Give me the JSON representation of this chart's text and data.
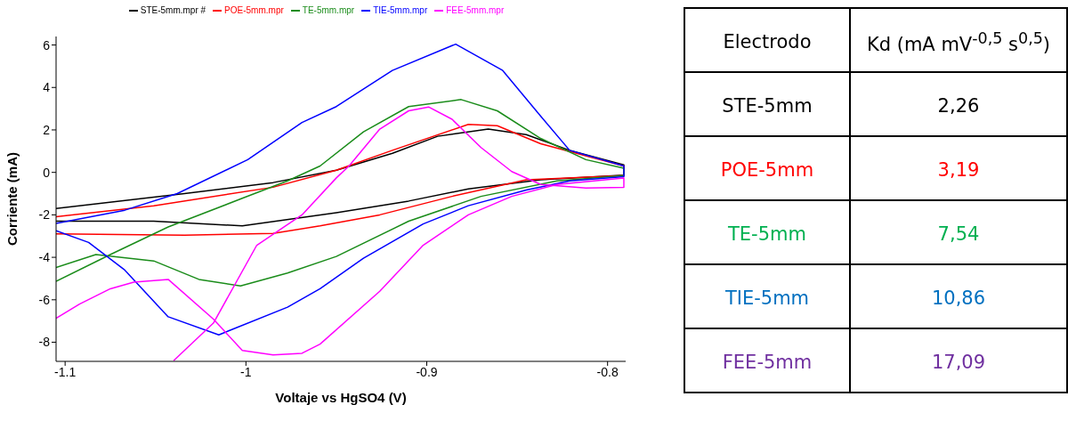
{
  "chart_data": [
    {
      "type": "line",
      "xlabel": "Voltaje vs HgSO4 (V)",
      "ylabel": "Corriente (mA)",
      "xlim": [
        -1.105,
        -0.79
      ],
      "ylim": [
        -8.9,
        6.4
      ],
      "xticks": [
        -1.1,
        -1,
        -0.9,
        -0.8
      ],
      "yticks": [
        -8,
        -6,
        -4,
        -2,
        0,
        2,
        4,
        6
      ],
      "legend": "top",
      "grid": false,
      "marker": "none",
      "line_style": "solid",
      "series": [
        {
          "name": "STE-5mm.mpr #",
          "color": "#000000",
          "x": [
            -1.105,
            -1.034,
            -0.985,
            -0.95,
            -0.919,
            -0.894,
            -0.866,
            -0.845,
            -0.821,
            -0.791,
            -0.791,
            -0.837,
            -0.877,
            -0.91,
            -0.95,
            -1.002,
            -1.051,
            -1.105
          ],
          "values": [
            -1.7,
            -1.0,
            -0.48,
            0.1,
            0.9,
            1.7,
            2.04,
            1.78,
            1.04,
            0.35,
            -0.13,
            -0.35,
            -0.78,
            -1.35,
            -1.9,
            -2.52,
            -2.3,
            -2.3
          ]
        },
        {
          "name": "POE-5mm.mpr",
          "color": "#ff0000",
          "x": [
            -1.105,
            -1.051,
            -0.985,
            -0.95,
            -0.919,
            -0.877,
            -0.861,
            -0.837,
            -0.791,
            -0.791,
            -0.845,
            -0.886,
            -0.926,
            -0.959,
            -0.985,
            -1.034,
            -1.105
          ],
          "values": [
            -2.09,
            -1.57,
            -0.7,
            0.1,
            1.04,
            2.26,
            2.2,
            1.35,
            0.3,
            -0.15,
            -0.35,
            -1.13,
            -2.0,
            -2.52,
            -2.87,
            -2.96,
            -2.9
          ]
        },
        {
          "name": "TE-5mm.mpr",
          "color": "#1a8c1a",
          "x": [
            -1.105,
            -1.075,
            -1.043,
            -1.002,
            -0.977,
            -0.959,
            -0.935,
            -0.91,
            -0.881,
            -0.861,
            -0.837,
            -0.812,
            -0.791,
            -0.791,
            -0.828,
            -0.87,
            -0.91,
            -0.95,
            -0.977,
            -1.003,
            -1.026,
            -1.051,
            -1.083,
            -1.105
          ],
          "values": [
            -5.13,
            -3.87,
            -2.57,
            -1.22,
            -0.4,
            0.3,
            1.91,
            3.1,
            3.43,
            2.9,
            1.6,
            0.6,
            0.2,
            -0.15,
            -0.4,
            -1.13,
            -2.3,
            -3.96,
            -4.74,
            -5.35,
            -5.04,
            -4.17,
            -3.87,
            -4.48
          ]
        },
        {
          "name": "TIE-5mm.mpr",
          "color": "#0000ff",
          "x": [
            -1.105,
            -1.067,
            -1.038,
            -0.999,
            -0.969,
            -0.95,
            -0.919,
            -0.884,
            -0.858,
            -0.837,
            -0.821,
            -0.791,
            -0.791,
            -0.821,
            -0.845,
            -0.877,
            -0.902,
            -0.935,
            -0.959,
            -0.977,
            -1.015,
            -1.043,
            -1.067,
            -1.087,
            -1.105
          ],
          "values": [
            -2.4,
            -1.78,
            -1.0,
            0.6,
            2.35,
            3.1,
            4.8,
            6.04,
            4.8,
            2.65,
            1.04,
            0.3,
            -0.2,
            -0.4,
            -0.83,
            -1.57,
            -2.43,
            -4.04,
            -5.48,
            -6.35,
            -7.65,
            -6.8,
            -4.6,
            -3.3,
            -2.75
          ]
        },
        {
          "name": "FEE-5mm.mpr",
          "color": "#ff00ff",
          "x": [
            -1.04,
            -1.018,
            -0.994,
            -0.969,
            -0.95,
            -0.943,
            -0.926,
            -0.91,
            -0.899,
            -0.886,
            -0.87,
            -0.853,
            -0.837,
            -0.812,
            -0.791,
            -0.791,
            -0.828,
            -0.853,
            -0.877,
            -0.902,
            -0.926,
            -0.959,
            -0.969,
            -0.985,
            -1.002,
            -1.018,
            -1.043,
            -1.062,
            -1.075,
            -1.092,
            -1.105
          ],
          "values": [
            -8.87,
            -7.1,
            -3.43,
            -2.0,
            -0.26,
            0.3,
            2.04,
            2.9,
            3.08,
            2.5,
            1.17,
            0.04,
            -0.57,
            -0.74,
            -0.7,
            -0.26,
            -0.57,
            -1.13,
            -2.0,
            -3.43,
            -5.6,
            -8.09,
            -8.52,
            -8.6,
            -8.39,
            -6.91,
            -5.04,
            -5.17,
            -5.48,
            -6.2,
            -6.87
          ]
        }
      ]
    },
    {
      "type": "other",
      "xlabel": "Electrodo",
      "ylabel": "Kd (mA mV$^{-0,5}$ s$^{0,5}$)",
      "categories": [
        "STE-5mm",
        "POE-5mm",
        "TE-5mm",
        "TIE-5mm",
        "FEE-5mm"
      ],
      "value_labels": [
        "2,26",
        "3,19",
        "7,54",
        "10,86",
        "17,09"
      ],
      "colors": [
        "#000000",
        "#ff0000",
        "#00b050",
        "#0070c0",
        "#7030a0"
      ]
    }
  ]
}
